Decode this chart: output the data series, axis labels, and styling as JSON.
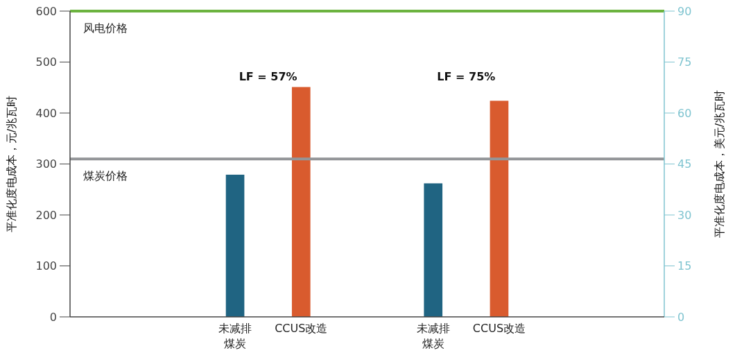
{
  "chart_data": {
    "type": "bar",
    "categories": [
      null,
      null,
      "未减排煤炭",
      "CCUS改造",
      null,
      "未减排煤炭",
      "CCUS改造",
      null,
      null
    ],
    "values": [
      null,
      null,
      279,
      451,
      null,
      262,
      424,
      null,
      null
    ],
    "colors": [
      null,
      null,
      "#206482",
      "#d95b2e",
      null,
      "#206482",
      "#d95b2e",
      null,
      null
    ],
    "ylabel": "平准化度电成本，元/兆瓦时",
    "y2label": "平准化度电成本，美元/兆瓦时",
    "ylim": [
      0,
      600
    ],
    "yticks": [
      0,
      100,
      200,
      300,
      400,
      500,
      600
    ],
    "y2lim": [
      0,
      90
    ],
    "y2ticks": [
      0,
      15,
      30,
      45,
      60,
      75,
      90
    ],
    "ref_lines": [
      {
        "axis": "y",
        "value": 600,
        "label": "风电价格",
        "color": "#6cb33f"
      },
      {
        "axis": "y",
        "value": 310,
        "label": "煤炭价格",
        "color": "#939598"
      }
    ],
    "annotations": [
      "LF = 57%",
      "LF = 75%"
    ],
    "grid": false
  }
}
